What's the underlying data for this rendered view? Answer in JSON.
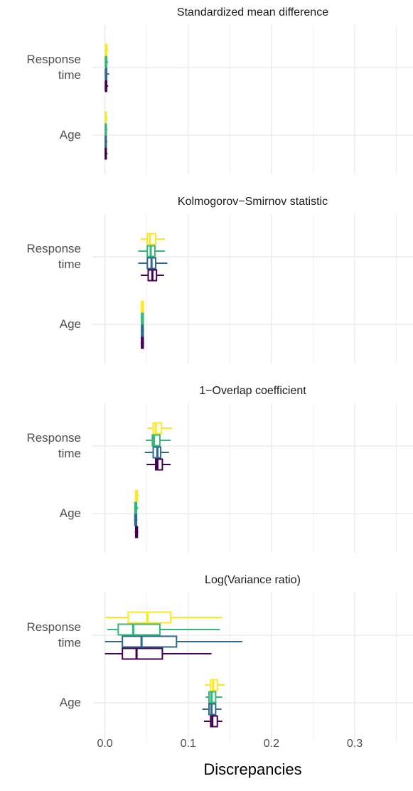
{
  "chart_data": {
    "type": "boxplot",
    "grid": true,
    "xlabel": "Discrepancies",
    "xlim": [
      -0.015,
      0.37
    ],
    "xticks": [
      {
        "value": 0,
        "label": "0.0"
      },
      0.1,
      0.2,
      0.3
    ],
    "xminorticks": [
      0.05,
      0.15,
      0.25,
      0.35
    ],
    "facets": [
      {
        "title": "Standardized mean difference",
        "categories": [
          "Response\ntime",
          "Age"
        ],
        "series": [
          {
            "color": "#fde725",
            "values": [
              {
                "low": 0,
                "q1": 0.001,
                "median": 0.001,
                "q3": 0.002,
                "high": 0.004
              },
              {
                "low": 0,
                "q1": 0.0005,
                "median": 0.001,
                "q3": 0.0015,
                "high": 0.003
              }
            ]
          },
          {
            "color": "#35b779",
            "values": [
              {
                "low": 0,
                "q1": 0.001,
                "median": 0.001,
                "q3": 0.002,
                "high": 0.004
              },
              {
                "low": 0,
                "q1": 0.0005,
                "median": 0.001,
                "q3": 0.0015,
                "high": 0.003
              }
            ]
          },
          {
            "color": "#31688e",
            "values": [
              {
                "low": 0,
                "q1": 0.001,
                "median": 0.001,
                "q3": 0.002,
                "high": 0.005
              },
              {
                "low": 0,
                "q1": 0.0005,
                "median": 0.001,
                "q3": 0.0015,
                "high": 0.003
              }
            ]
          },
          {
            "color": "#440154",
            "values": [
              {
                "low": 0,
                "q1": 0.001,
                "median": 0.001,
                "q3": 0.002,
                "high": 0.004
              },
              {
                "low": 0,
                "q1": 0.0005,
                "median": 0.001,
                "q3": 0.0015,
                "high": 0.003
              }
            ]
          }
        ]
      },
      {
        "title": "Kolmogorov−Smirnov statistic",
        "categories": [
          "Response\ntime",
          "Age"
        ],
        "series": [
          {
            "color": "#fde725",
            "values": [
              {
                "low": 0.043,
                "q1": 0.051,
                "median": 0.054,
                "q3": 0.061,
                "high": 0.072
              },
              {
                "low": 0.043,
                "q1": 0.044,
                "median": 0.045,
                "q3": 0.046,
                "high": 0.047
              }
            ]
          },
          {
            "color": "#35b779",
            "values": [
              {
                "low": 0.04,
                "q1": 0.051,
                "median": 0.055,
                "q3": 0.06,
                "high": 0.072
              },
              {
                "low": 0.043,
                "q1": 0.044,
                "median": 0.045,
                "q3": 0.046,
                "high": 0.047
              }
            ]
          },
          {
            "color": "#31688e",
            "values": [
              {
                "low": 0.04,
                "q1": 0.051,
                "median": 0.056,
                "q3": 0.061,
                "high": 0.075
              },
              {
                "low": 0.043,
                "q1": 0.044,
                "median": 0.045,
                "q3": 0.046,
                "high": 0.047
              }
            ]
          },
          {
            "color": "#440154",
            "values": [
              {
                "low": 0.043,
                "q1": 0.052,
                "median": 0.057,
                "q3": 0.062,
                "high": 0.071
              },
              {
                "low": 0.043,
                "q1": 0.044,
                "median": 0.045,
                "q3": 0.046,
                "high": 0.047
              }
            ]
          }
        ]
      },
      {
        "title": "1−Overlap coefficient",
        "categories": [
          "Response\ntime",
          "Age"
        ],
        "series": [
          {
            "color": "#fde725",
            "values": [
              {
                "low": 0.051,
                "q1": 0.058,
                "median": 0.061,
                "q3": 0.068,
                "high": 0.081
              },
              {
                "low": 0.036,
                "q1": 0.037,
                "median": 0.038,
                "q3": 0.039,
                "high": 0.041
              }
            ]
          },
          {
            "color": "#35b779",
            "values": [
              {
                "low": 0.049,
                "q1": 0.057,
                "median": 0.059,
                "q3": 0.066,
                "high": 0.079
              },
              {
                "low": 0.035,
                "q1": 0.036,
                "median": 0.037,
                "q3": 0.038,
                "high": 0.04
              }
            ]
          },
          {
            "color": "#31688e",
            "values": [
              {
                "low": 0.048,
                "q1": 0.058,
                "median": 0.063,
                "q3": 0.067,
                "high": 0.077
              },
              {
                "low": 0.035,
                "q1": 0.036,
                "median": 0.037,
                "q3": 0.038,
                "high": 0.039
              }
            ]
          },
          {
            "color": "#440154",
            "values": [
              {
                "low": 0.05,
                "q1": 0.061,
                "median": 0.063,
                "q3": 0.069,
                "high": 0.079
              },
              {
                "low": 0.036,
                "q1": 0.037,
                "median": 0.038,
                "q3": 0.039,
                "high": 0.04
              }
            ]
          }
        ]
      },
      {
        "title": "Log(Variance ratio)",
        "categories": [
          "Response\ntime",
          "Age"
        ],
        "series": [
          {
            "color": "#fde725",
            "values": [
              {
                "low": 0,
                "q1": 0.028,
                "median": 0.051,
                "q3": 0.079,
                "high": 0.141
              },
              {
                "low": 0.12,
                "q1": 0.127,
                "median": 0.13,
                "q3": 0.135,
                "high": 0.144
              }
            ]
          },
          {
            "color": "#35b779",
            "values": [
              {
                "low": 0.003,
                "q1": 0.016,
                "median": 0.034,
                "q3": 0.066,
                "high": 0.138
              },
              {
                "low": 0.121,
                "q1": 0.125,
                "median": 0.128,
                "q3": 0.133,
                "high": 0.141
              }
            ]
          },
          {
            "color": "#31688e",
            "values": [
              {
                "low": 0,
                "q1": 0.021,
                "median": 0.044,
                "q3": 0.086,
                "high": 0.165
              },
              {
                "low": 0.117,
                "q1": 0.125,
                "median": 0.128,
                "q3": 0.133,
                "high": 0.14
              }
            ]
          },
          {
            "color": "#440154",
            "values": [
              {
                "low": 0,
                "q1": 0.021,
                "median": 0.038,
                "q3": 0.069,
                "high": 0.128
              },
              {
                "low": 0.119,
                "q1": 0.127,
                "median": 0.129,
                "q3": 0.135,
                "high": 0.141
              }
            ]
          }
        ]
      }
    ]
  }
}
